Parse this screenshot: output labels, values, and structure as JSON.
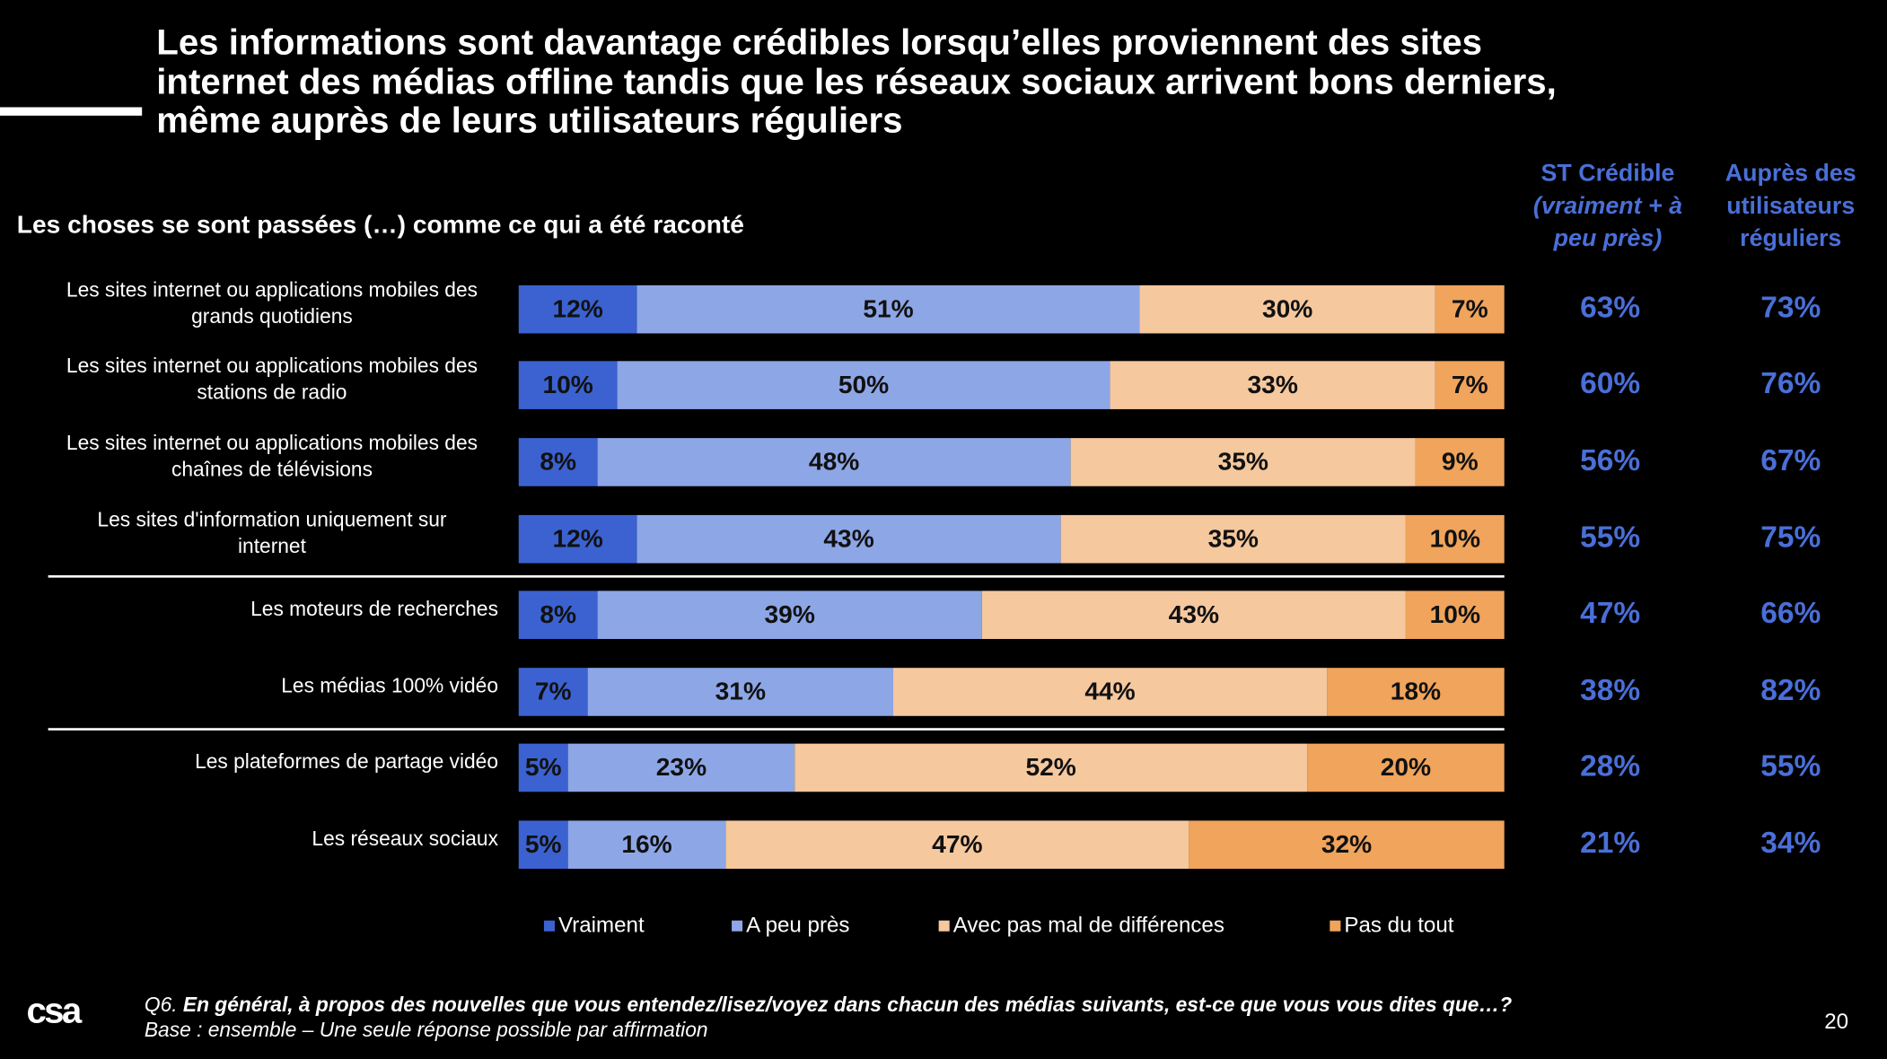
{
  "chart_data": {
    "type": "stacked-bar-horizontal",
    "title": [
      "Les informations sont davantage crédibles lorsqu’elles proviennent des sites",
      "internet des médias offline tandis que les réseaux sociaux arrivent bons derniers,",
      "même auprès de leurs utilisateurs réguliers"
    ],
    "subtitle": "Les choses se sont passées (…) comme ce qui a été raconté",
    "categories": [
      [
        "Les sites internet ou applications mobiles des",
        "grands quotidiens"
      ],
      [
        "Les sites internet ou applications mobiles des",
        "stations de radio"
      ],
      [
        "Les sites internet ou applications mobiles des",
        "chaînes de télévisions"
      ],
      [
        "Les sites d'information uniquement sur",
        "internet"
      ],
      [
        "Les moteurs de recherches"
      ],
      [
        "Les médias 100% vidéo"
      ],
      [
        "Les plateformes de partage vidéo"
      ],
      [
        "Les réseaux sociaux"
      ]
    ],
    "xlim": [
      0,
      100
    ],
    "series": [
      {
        "name": "Vraiment",
        "color": "#3b62d0",
        "values": [
          12,
          10,
          8,
          12,
          8,
          7,
          5,
          5
        ],
        "value_labels": [
          "12%",
          "10%",
          "8%",
          "12%",
          "8%",
          "7%",
          "5%",
          "5%"
        ]
      },
      {
        "name": "A peu près",
        "color": "#8da6e6",
        "values": [
          51,
          50,
          48,
          43,
          39,
          31,
          23,
          16
        ],
        "value_labels": [
          "51%",
          "50%",
          "48%",
          "43%",
          "39%",
          "31%",
          "23%",
          "16%"
        ]
      },
      {
        "name": "Avec pas mal de différences",
        "color": "#f5c89e",
        "values": [
          30,
          33,
          35,
          35,
          43,
          44,
          52,
          47
        ],
        "value_labels": [
          "30%",
          "33%",
          "35%",
          "35%",
          "43%",
          "44%",
          "52%",
          "47%"
        ]
      },
      {
        "name": "Pas du tout",
        "color": "#f0a45c",
        "values": [
          7,
          7,
          9,
          10,
          10,
          18,
          20,
          32
        ],
        "value_labels": [
          "7%",
          "7%",
          "9%",
          "10%",
          "10%",
          "18%",
          "20%",
          "32%"
        ]
      }
    ],
    "columns": [
      {
        "header": [
          "ST Crédible",
          "(vraiment + à",
          "peu près)"
        ],
        "values": [
          63,
          60,
          56,
          55,
          47,
          38,
          28,
          21
        ],
        "value_labels": [
          "63%",
          "60%",
          "56%",
          "55%",
          "47%",
          "38%",
          "28%",
          "21%"
        ]
      },
      {
        "header": [
          "Auprès des",
          "utilisateurs",
          "réguliers"
        ],
        "values": [
          73,
          76,
          67,
          75,
          66,
          82,
          55,
          34
        ],
        "value_labels": [
          "73%",
          "76%",
          "67%",
          "75%",
          "66%",
          "82%",
          "55%",
          "34%"
        ]
      }
    ],
    "footnote": {
      "prefix": "Q6.",
      "question": "En général, à propos des nouvelles que vous entendez/lisez/voyez dans chacun des médias suivants, est-ce que vous vous dites que…?",
      "base": "Base : ensemble – Une seule réponse possible par affirmation"
    },
    "logo": "csa",
    "page_number": "20"
  }
}
